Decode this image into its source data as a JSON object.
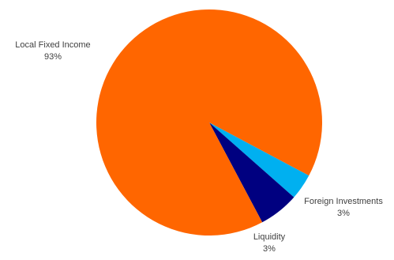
{
  "chart_data": {
    "type": "pie",
    "title": "",
    "slices": [
      {
        "label": "Local Fixed Income",
        "value": 93,
        "value_label": "93%",
        "color": "#FF6600"
      },
      {
        "label": "Foreign Investments",
        "value": 3,
        "value_label": "3%",
        "color": "#00B0F0"
      },
      {
        "label": "Liquidity",
        "value": 3,
        "value_label": "3%",
        "color": "#000080"
      }
    ],
    "legend": "none",
    "data_labels": "outside"
  }
}
